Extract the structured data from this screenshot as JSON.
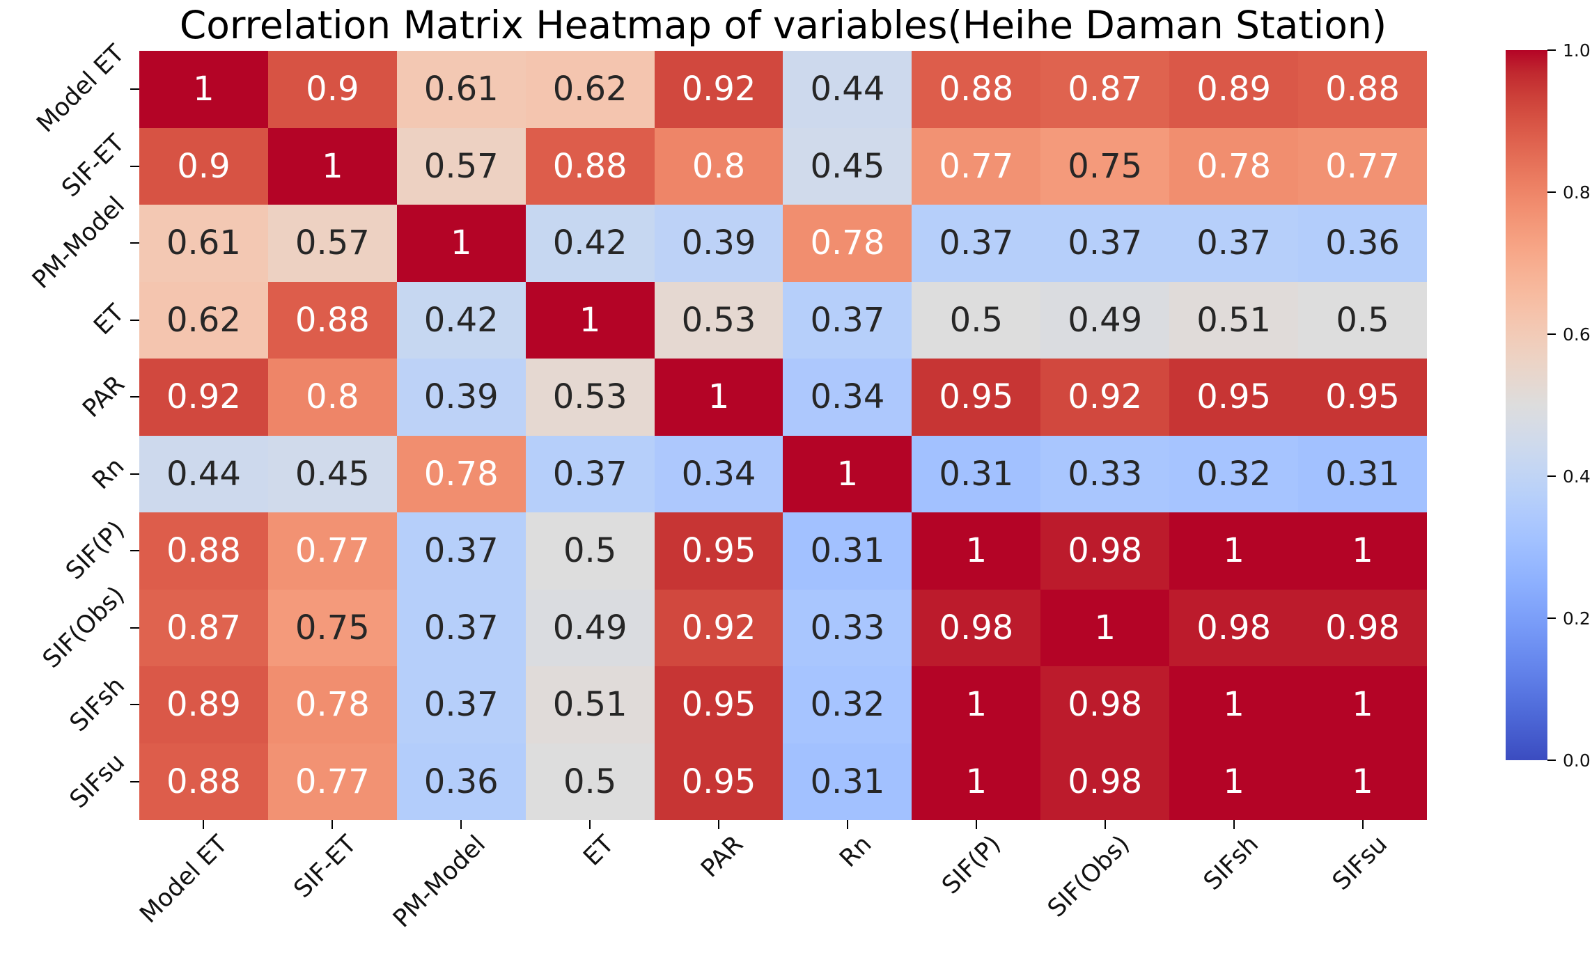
{
  "title": "Correlation Matrix Heatmap of variables(Heihe Daman Station)",
  "chart_data": {
    "type": "heatmap",
    "labels": [
      "Model ET",
      "SIF-ET",
      "PM-Model",
      "ET",
      "PAR",
      "Rn",
      "SIF(P)",
      "SIF(Obs)",
      "SIFsh",
      "SIFsu"
    ],
    "matrix": [
      [
        1,
        0.9,
        0.61,
        0.62,
        0.92,
        0.44,
        0.88,
        0.87,
        0.89,
        0.88
      ],
      [
        0.9,
        1,
        0.57,
        0.88,
        0.8,
        0.45,
        0.77,
        0.75,
        0.78,
        0.77
      ],
      [
        0.61,
        0.57,
        1,
        0.42,
        0.39,
        0.78,
        0.37,
        0.37,
        0.37,
        0.36
      ],
      [
        0.62,
        0.88,
        0.42,
        1,
        0.53,
        0.37,
        0.5,
        0.49,
        0.51,
        0.5
      ],
      [
        0.92,
        0.8,
        0.39,
        0.53,
        1,
        0.34,
        0.95,
        0.92,
        0.95,
        0.95
      ],
      [
        0.44,
        0.45,
        0.78,
        0.37,
        0.34,
        1,
        0.31,
        0.33,
        0.32,
        0.31
      ],
      [
        0.88,
        0.77,
        0.37,
        0.5,
        0.95,
        0.31,
        1,
        0.98,
        1,
        1
      ],
      [
        0.87,
        0.75,
        0.37,
        0.49,
        0.92,
        0.33,
        0.98,
        1,
        0.98,
        0.98
      ],
      [
        0.89,
        0.78,
        0.37,
        0.51,
        0.95,
        0.32,
        1,
        0.98,
        1,
        1
      ],
      [
        0.88,
        0.77,
        0.36,
        0.5,
        0.95,
        0.31,
        1,
        0.98,
        1,
        1
      ]
    ],
    "value_range": [
      0.0,
      1.0
    ],
    "colormap": "coolwarm",
    "colorbar_tick_labels": [
      "1.0",
      "0.8",
      "0.6",
      "0.4",
      "0.2",
      "0.0"
    ],
    "grid_on": false,
    "legend": "colorbar-right"
  },
  "colors": {
    "background": "#ffffff",
    "annotation_light": "#ffffff",
    "annotation_dark": "#262626",
    "annotation_light_threshold": 0.77,
    "high_red": "#b40426",
    "mid_gray": "#dddddd",
    "low_blue": "#3b4cc0",
    "colormap_stops": [
      "#3b4cc0",
      "#445acc",
      "#4d68d7",
      "#5775e1",
      "#6282ea",
      "#6c8ef1",
      "#779af7",
      "#82a5fb",
      "#8db0fe",
      "#98b9ff",
      "#a3c2ff",
      "#aec9fd",
      "#b8d0f9",
      "#c2d5f4",
      "#ccd9ee",
      "#d5dbe6",
      "#dddddd",
      "#e5d8d1",
      "#ecd3c5",
      "#f1ccb9",
      "#f5c4ad",
      "#f7bba0",
      "#f7b194",
      "#f7a687",
      "#f49a7b",
      "#f18d6f",
      "#ec7f63",
      "#e57058",
      "#de604d",
      "#d55042",
      "#cb3e38",
      "#c0282f",
      "#b40426"
    ]
  }
}
